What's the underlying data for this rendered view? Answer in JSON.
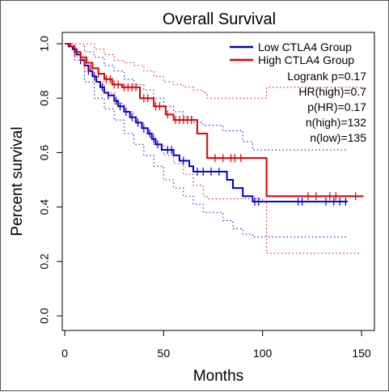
{
  "chart_data": {
    "type": "line",
    "title": "Overall Survival",
    "xlabel": "Months",
    "ylabel": "Percent survival",
    "xlim": [
      0,
      150
    ],
    "ylim": [
      0,
      1
    ],
    "xticks": [
      "0",
      "50",
      "100",
      "150"
    ],
    "yticks": [
      "0.0",
      "0.2",
      "0.4",
      "0.6",
      "0.8",
      "1.0"
    ],
    "legend_position": "top-right",
    "legend": [
      {
        "label": "Low CTLA4 Group",
        "color": "#0000cc"
      },
      {
        "label": "High CTLA4 Group",
        "color": "#dd0000"
      }
    ],
    "stats": [
      "Logrank p=0.17",
      "HR(high)=0.7",
      "p(HR)=0.17",
      "n(high)=132",
      "n(low)=135"
    ],
    "series": [
      {
        "name": "Low CTLA4 Group",
        "color": "#0000cc",
        "steps": [
          [
            0,
            1.0
          ],
          [
            2,
            0.99
          ],
          [
            4,
            0.98
          ],
          [
            6,
            0.96
          ],
          [
            8,
            0.94
          ],
          [
            10,
            0.92
          ],
          [
            12,
            0.9
          ],
          [
            14,
            0.88
          ],
          [
            16,
            0.86
          ],
          [
            18,
            0.84
          ],
          [
            20,
            0.82
          ],
          [
            22,
            0.81
          ],
          [
            25,
            0.79
          ],
          [
            27,
            0.77
          ],
          [
            30,
            0.75
          ],
          [
            33,
            0.73
          ],
          [
            36,
            0.71
          ],
          [
            39,
            0.69
          ],
          [
            42,
            0.67
          ],
          [
            44,
            0.65
          ],
          [
            46,
            0.63
          ],
          [
            49,
            0.61
          ],
          [
            55,
            0.59
          ],
          [
            58,
            0.57
          ],
          [
            63,
            0.55
          ],
          [
            65,
            0.53
          ],
          [
            82,
            0.5
          ],
          [
            85,
            0.47
          ],
          [
            90,
            0.44
          ],
          [
            95,
            0.42
          ],
          [
            143,
            0.42
          ]
        ],
        "censor": [
          [
            8,
            0.94
          ],
          [
            12,
            0.9
          ],
          [
            15,
            0.88
          ],
          [
            19,
            0.84
          ],
          [
            22,
            0.81
          ],
          [
            26,
            0.79
          ],
          [
            28,
            0.77
          ],
          [
            31,
            0.75
          ],
          [
            34,
            0.73
          ],
          [
            37,
            0.71
          ],
          [
            40,
            0.69
          ],
          [
            43,
            0.67
          ],
          [
            45,
            0.65
          ],
          [
            47,
            0.63
          ],
          [
            52,
            0.61
          ],
          [
            54,
            0.61
          ],
          [
            60,
            0.57
          ],
          [
            67,
            0.53
          ],
          [
            70,
            0.53
          ],
          [
            74,
            0.53
          ],
          [
            78,
            0.53
          ],
          [
            96,
            0.42
          ],
          [
            98,
            0.42
          ],
          [
            118,
            0.42
          ],
          [
            120,
            0.42
          ],
          [
            132,
            0.42
          ],
          [
            136,
            0.42
          ],
          [
            139,
            0.42
          ],
          [
            142,
            0.42
          ]
        ],
        "ci_upper": [
          [
            0,
            1.0
          ],
          [
            5,
            1.0
          ],
          [
            10,
            0.97
          ],
          [
            15,
            0.95
          ],
          [
            20,
            0.92
          ],
          [
            25,
            0.9
          ],
          [
            30,
            0.87
          ],
          [
            35,
            0.85
          ],
          [
            40,
            0.83
          ],
          [
            45,
            0.8
          ],
          [
            50,
            0.77
          ],
          [
            55,
            0.75
          ],
          [
            60,
            0.73
          ],
          [
            65,
            0.71
          ],
          [
            70,
            0.7
          ],
          [
            80,
            0.68
          ],
          [
            90,
            0.64
          ],
          [
            95,
            0.61
          ],
          [
            143,
            0.61
          ]
        ],
        "ci_lower": [
          [
            0,
            1.0
          ],
          [
            5,
            0.94
          ],
          [
            10,
            0.86
          ],
          [
            15,
            0.8
          ],
          [
            20,
            0.76
          ],
          [
            25,
            0.72
          ],
          [
            30,
            0.67
          ],
          [
            35,
            0.63
          ],
          [
            40,
            0.59
          ],
          [
            45,
            0.55
          ],
          [
            50,
            0.5
          ],
          [
            55,
            0.47
          ],
          [
            60,
            0.44
          ],
          [
            65,
            0.41
          ],
          [
            70,
            0.38
          ],
          [
            80,
            0.35
          ],
          [
            85,
            0.32
          ],
          [
            90,
            0.3
          ],
          [
            95,
            0.29
          ],
          [
            143,
            0.29
          ]
        ]
      },
      {
        "name": "High CTLA4 Group",
        "color": "#dd0000",
        "steps": [
          [
            0,
            1.0
          ],
          [
            3,
            0.99
          ],
          [
            5,
            0.97
          ],
          [
            8,
            0.95
          ],
          [
            11,
            0.93
          ],
          [
            14,
            0.91
          ],
          [
            17,
            0.89
          ],
          [
            20,
            0.87
          ],
          [
            24,
            0.85
          ],
          [
            29,
            0.84
          ],
          [
            38,
            0.8
          ],
          [
            45,
            0.77
          ],
          [
            51,
            0.74
          ],
          [
            55,
            0.72
          ],
          [
            67,
            0.67
          ],
          [
            72,
            0.58
          ],
          [
            102,
            0.44
          ],
          [
            151,
            0.44
          ]
        ],
        "censor": [
          [
            5,
            0.97
          ],
          [
            8,
            0.95
          ],
          [
            10,
            0.93
          ],
          [
            13,
            0.91
          ],
          [
            17,
            0.89
          ],
          [
            21,
            0.87
          ],
          [
            23,
            0.87
          ],
          [
            25,
            0.85
          ],
          [
            27,
            0.85
          ],
          [
            30,
            0.84
          ],
          [
            32,
            0.84
          ],
          [
            34,
            0.84
          ],
          [
            36,
            0.84
          ],
          [
            40,
            0.8
          ],
          [
            42,
            0.8
          ],
          [
            46,
            0.77
          ],
          [
            48,
            0.77
          ],
          [
            52,
            0.74
          ],
          [
            56,
            0.72
          ],
          [
            58,
            0.72
          ],
          [
            60,
            0.72
          ],
          [
            62,
            0.72
          ],
          [
            64,
            0.72
          ],
          [
            76,
            0.58
          ],
          [
            80,
            0.58
          ],
          [
            84,
            0.58
          ],
          [
            86,
            0.58
          ],
          [
            89,
            0.58
          ],
          [
            123,
            0.44
          ],
          [
            127,
            0.44
          ],
          [
            134,
            0.44
          ],
          [
            137,
            0.44
          ],
          [
            147,
            0.44
          ]
        ],
        "ci_upper": [
          [
            0,
            1.0
          ],
          [
            5,
            1.0
          ],
          [
            10,
            1.0
          ],
          [
            15,
            0.98
          ],
          [
            20,
            0.96
          ],
          [
            25,
            0.94
          ],
          [
            30,
            0.93
          ],
          [
            35,
            0.92
          ],
          [
            40,
            0.9
          ],
          [
            45,
            0.88
          ],
          [
            50,
            0.86
          ],
          [
            55,
            0.85
          ],
          [
            60,
            0.84
          ],
          [
            65,
            0.83
          ],
          [
            70,
            0.82
          ],
          [
            72,
            0.8
          ],
          [
            100,
            0.8
          ],
          [
            102,
            0.84
          ],
          [
            150,
            0.84
          ]
        ],
        "ci_lower": [
          [
            0,
            1.0
          ],
          [
            5,
            0.95
          ],
          [
            10,
            0.9
          ],
          [
            15,
            0.86
          ],
          [
            20,
            0.82
          ],
          [
            25,
            0.78
          ],
          [
            30,
            0.75
          ],
          [
            35,
            0.71
          ],
          [
            40,
            0.67
          ],
          [
            45,
            0.63
          ],
          [
            50,
            0.59
          ],
          [
            55,
            0.56
          ],
          [
            60,
            0.52
          ],
          [
            65,
            0.48
          ],
          [
            70,
            0.44
          ],
          [
            72,
            0.43
          ],
          [
            100,
            0.42
          ],
          [
            102,
            0.23
          ],
          [
            150,
            0.23
          ]
        ]
      }
    ]
  }
}
